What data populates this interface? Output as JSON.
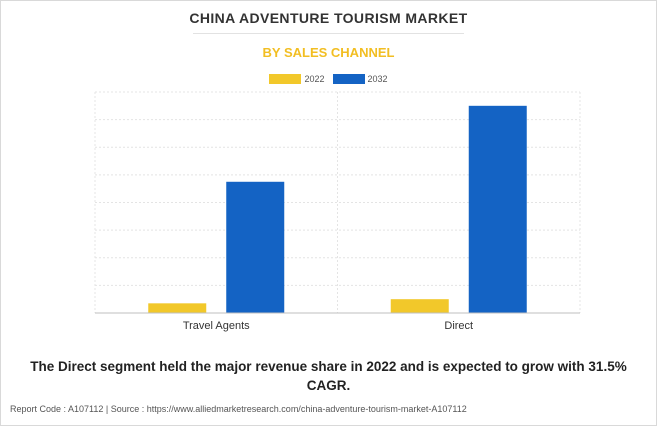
{
  "chart_data": {
    "type": "bar",
    "title": "CHINA ADVENTURE TOURISM MARKET",
    "subtitle": "BY SALES CHANNEL",
    "categories": [
      "Travel Agents",
      "Direct"
    ],
    "series": [
      {
        "name": "2022",
        "values": [
          0.35,
          0.5
        ],
        "color": "#f2c82a"
      },
      {
        "name": "2032",
        "values": [
          4.75,
          7.5
        ],
        "color": "#1463c4"
      }
    ],
    "ylim": [
      0,
      8
    ],
    "grid": true,
    "legend_position": "top-center",
    "xlabel": "",
    "ylabel": ""
  },
  "caption": "The Direct segment held the major revenue share in 2022 and is expected to grow with 31.5% CAGR.",
  "footer": "Report Code : A107112  |  Source : https://www.alliedmarketresearch.com/china-adventure-tourism-market-A107112"
}
